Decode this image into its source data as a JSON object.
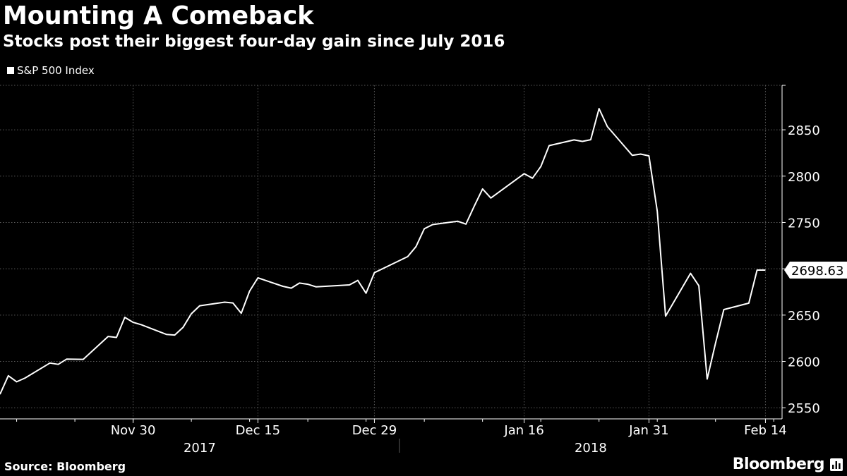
{
  "header": {
    "title": "Mounting A Comeback",
    "subtitle": "Stocks post their biggest four-day gain since July 2016"
  },
  "legend": {
    "label": "S&P 500 Index"
  },
  "footer": {
    "source": "Source: Bloomberg",
    "brand": "Bloomberg"
  },
  "colors": {
    "background": "#000000",
    "line": "#ffffff",
    "grid": "#5a5a5a",
    "text": "#ffffff"
  },
  "chart_data": {
    "type": "line",
    "series": [
      {
        "name": "S&P 500 Index",
        "x": [
          "2017-11-14",
          "2017-11-15",
          "2017-11-16",
          "2017-11-17",
          "2017-11-20",
          "2017-11-21",
          "2017-11-22",
          "2017-11-24",
          "2017-11-27",
          "2017-11-28",
          "2017-11-29",
          "2017-11-30",
          "2017-12-01",
          "2017-12-04",
          "2017-12-05",
          "2017-12-06",
          "2017-12-07",
          "2017-12-08",
          "2017-12-11",
          "2017-12-12",
          "2017-12-13",
          "2017-12-14",
          "2017-12-15",
          "2017-12-18",
          "2017-12-19",
          "2017-12-20",
          "2017-12-21",
          "2017-12-22",
          "2017-12-26",
          "2017-12-27",
          "2017-12-28",
          "2017-12-29",
          "2018-01-02",
          "2018-01-03",
          "2018-01-04",
          "2018-01-05",
          "2018-01-08",
          "2018-01-09",
          "2018-01-10",
          "2018-01-11",
          "2018-01-12",
          "2018-01-16",
          "2018-01-17",
          "2018-01-18",
          "2018-01-19",
          "2018-01-22",
          "2018-01-23",
          "2018-01-24",
          "2018-01-25",
          "2018-01-26",
          "2018-01-29",
          "2018-01-30",
          "2018-01-31",
          "2018-02-01",
          "2018-02-02",
          "2018-02-05",
          "2018-02-06",
          "2018-02-07",
          "2018-02-08",
          "2018-02-09",
          "2018-02-12",
          "2018-02-13",
          "2018-02-14"
        ],
        "values": [
          2564.6,
          2584.6,
          2578.0,
          2582.1,
          2598.3,
          2596.8,
          2602.5,
          2602.2,
          2627.0,
          2625.9,
          2647.6,
          2642.2,
          2639.5,
          2629.2,
          2628.5,
          2636.7,
          2651.5,
          2660.1,
          2664.0,
          2663.1,
          2652.0,
          2675.8,
          2690.2,
          2681.1,
          2679.1,
          2684.6,
          2683.3,
          2680.5,
          2682.6,
          2687.5,
          2673.6,
          2695.8,
          2713.1,
          2723.9,
          2743.2,
          2747.7,
          2751.3,
          2748.2,
          2767.6,
          2786.2,
          2776.4,
          2802.6,
          2797.8,
          2810.3,
          2832.9,
          2839.1,
          2837.5,
          2839.3,
          2872.9,
          2853.5,
          2822.4,
          2823.8,
          2821.9,
          2762.1,
          2648.9,
          2695.1,
          2681.7,
          2581.0,
          2619.6,
          2656.0,
          2662.9,
          2698.6,
          2698.63
        ]
      }
    ],
    "last_value_label": "2698.63",
    "y_ticks": [
      "2550",
      "2600",
      "2650",
      "2700",
      "2750",
      "2800",
      "2850"
    ],
    "x_ticks": [
      "Nov 30",
      "Dec 15",
      "Dec 29",
      "Jan 16",
      "Jan 31",
      "Feb 14"
    ],
    "x_tick_dates": [
      "2017-11-30",
      "2017-12-15",
      "2017-12-29",
      "2018-01-16",
      "2018-01-31",
      "2018-02-14"
    ],
    "year_labels": [
      "2017",
      "2018"
    ],
    "ylim": [
      2538,
      2898
    ],
    "xlim": [
      "2017-11-14",
      "2018-02-16"
    ],
    "grid": true,
    "legend_position": "top-left"
  }
}
